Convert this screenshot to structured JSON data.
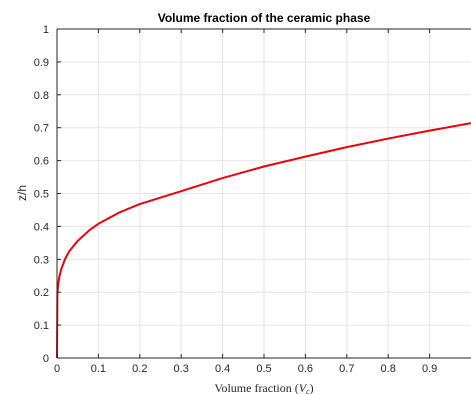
{
  "chart_data": {
    "type": "line",
    "title": "Volume fraction of the ceramic phase",
    "xlabel_prefix": "Volume fraction (",
    "xlabel_var": "V",
    "xlabel_sub": "c",
    "xlabel_suffix": ")",
    "ylabel": "z/h",
    "xlim": [
      0,
      1
    ],
    "ylim": [
      0,
      1
    ],
    "x_ticks": [
      "0",
      "0.1",
      "0.2",
      "0.3",
      "0.4",
      "0.5",
      "0.6",
      "0.7",
      "0.8",
      "0.9"
    ],
    "y_ticks": [
      "0",
      "0.1",
      "0.2",
      "0.3",
      "0.4",
      "0.5",
      "0.6",
      "0.7",
      "0.8",
      "0.9",
      "1"
    ],
    "grid": true,
    "series": [
      {
        "color": "#e8000b",
        "x": [
          0,
          0.001,
          0.005,
          0.01,
          0.02,
          0.03,
          0.05,
          0.08,
          0.1,
          0.15,
          0.2,
          0.3,
          0.4,
          0.5,
          0.6,
          0.7,
          0.8,
          0.9,
          1.0
        ],
        "y": [
          0,
          0.2,
          0.243,
          0.269,
          0.302,
          0.325,
          0.356,
          0.39,
          0.408,
          0.442,
          0.468,
          0.507,
          0.547,
          0.582,
          0.612,
          0.641,
          0.667,
          0.691,
          0.714
        ]
      }
    ]
  }
}
